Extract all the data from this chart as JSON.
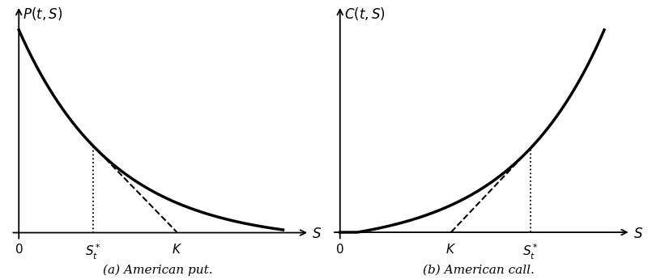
{
  "put": {
    "ylabel": "P(t,\\,S)",
    "S_star": 0.28,
    "K": 0.6,
    "S_max": 1.0,
    "alpha": 2.8,
    "caption": "(a) American put."
  },
  "call": {
    "ylabel": "C(t,\\,S)",
    "S_star": 0.72,
    "K": 0.42,
    "S_max": 1.0,
    "beta": 2.8,
    "caption": "(b) American call."
  },
  "xlabel": "S",
  "line_color": "black",
  "linewidth": 2.5,
  "dashed_linewidth": 1.5,
  "dotted_linewidth": 1.3,
  "figsize": [
    8.0,
    3.46
  ],
  "dpi": 100
}
